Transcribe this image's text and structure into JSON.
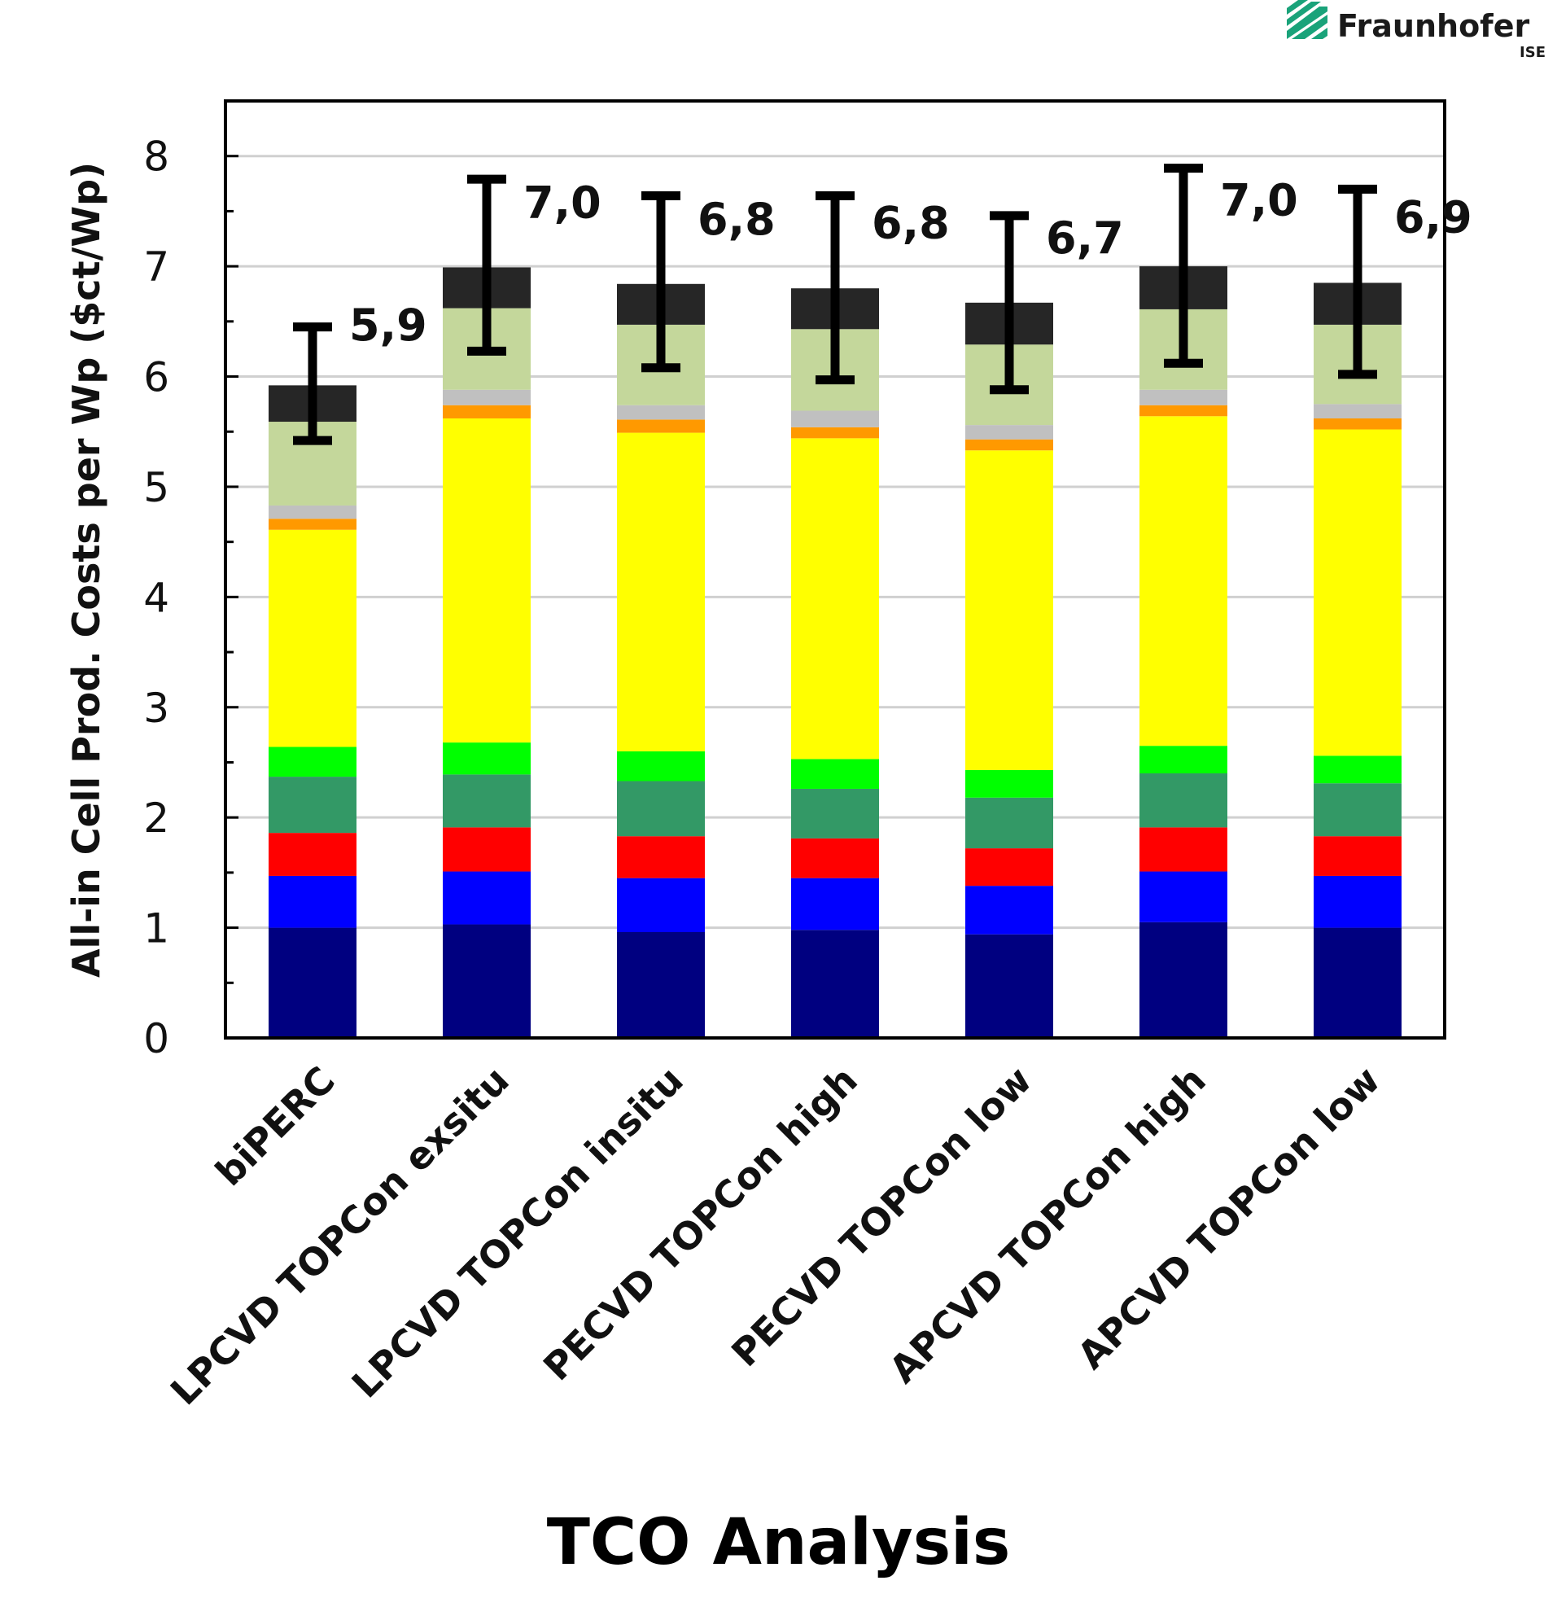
{
  "logo": {
    "name": "Fraunhofer",
    "sub": "ISE"
  },
  "caption": "TCO Analysis",
  "chart_data": {
    "type": "bar",
    "stacked": true,
    "ylabel": "All-in Cell Prod. Costs per Wp ($ct/Wp)",
    "xlabel": "",
    "ylim": [
      0,
      8.5
    ],
    "yticks": [
      "0",
      "1",
      "2",
      "3",
      "4",
      "5",
      "6",
      "7",
      "8"
    ],
    "grid": true,
    "categories": [
      "biPERC",
      "LPCVD TOPCon exsitu",
      "LPCVD TOPCon insitu",
      "PECVD TOPCon high",
      "PECVD TOPCon low",
      "APCVD TOPCon high",
      "APCVD TOPCon low"
    ],
    "segment_colors": [
      "#000080",
      "#0000ff",
      "#ff0000",
      "#339966",
      "#00ff00",
      "#ffff00",
      "#ff9900",
      "#c0c0c0",
      "#c4d79b",
      "#262626"
    ],
    "segments": [
      [
        1.0,
        0.47,
        0.39,
        0.51,
        0.27,
        1.97,
        0.1,
        0.12,
        0.76,
        0.33
      ],
      [
        1.03,
        0.48,
        0.4,
        0.48,
        0.29,
        2.94,
        0.12,
        0.14,
        0.74,
        0.37
      ],
      [
        0.96,
        0.49,
        0.38,
        0.5,
        0.27,
        2.89,
        0.12,
        0.13,
        0.73,
        0.37
      ],
      [
        0.98,
        0.47,
        0.36,
        0.45,
        0.27,
        2.91,
        0.1,
        0.15,
        0.74,
        0.37
      ],
      [
        0.94,
        0.44,
        0.34,
        0.46,
        0.25,
        2.9,
        0.1,
        0.13,
        0.73,
        0.38
      ],
      [
        1.05,
        0.46,
        0.4,
        0.49,
        0.25,
        2.99,
        0.1,
        0.14,
        0.73,
        0.39
      ],
      [
        1.0,
        0.47,
        0.36,
        0.48,
        0.25,
        2.96,
        0.1,
        0.13,
        0.72,
        0.38
      ]
    ],
    "error_low": [
      5.42,
      6.23,
      6.08,
      5.97,
      5.88,
      6.12,
      6.02
    ],
    "error_high": [
      6.45,
      7.79,
      7.64,
      7.64,
      7.46,
      7.89,
      7.7
    ],
    "data_labels": [
      "5,9",
      "7,0",
      "6,8",
      "6,8",
      "6,7",
      "7,0",
      "6,9"
    ]
  }
}
